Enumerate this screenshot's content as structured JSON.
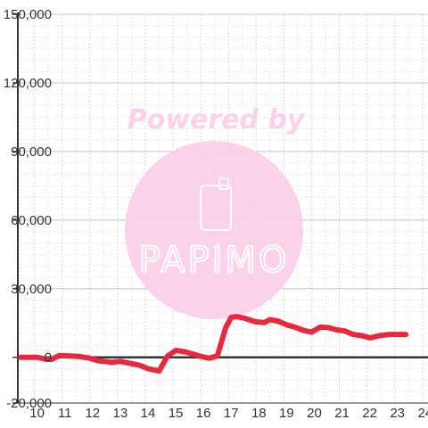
{
  "chart_data": {
    "type": "line",
    "title": "",
    "xlabel": "",
    "ylabel": "",
    "xlim": [
      9.4,
      24.2
    ],
    "ylim": [
      -20000,
      150000
    ],
    "x_ticks": [
      10,
      11,
      12,
      13,
      14,
      15,
      16,
      17,
      18,
      19,
      20,
      21,
      22,
      23,
      24
    ],
    "y_ticks": [
      -20000,
      0,
      30000,
      60000,
      90000,
      120000,
      150000
    ],
    "x_tick_labels": [
      "10",
      "11",
      "12",
      "13",
      "14",
      "15",
      "16",
      "17",
      "18",
      "19",
      "20",
      "21",
      "22",
      "23",
      "24"
    ],
    "y_tick_labels": [
      "-20,000",
      "0",
      "30,000",
      "60,000",
      "90,000",
      "120,000",
      "150,000"
    ],
    "grid": true,
    "legend": "none",
    "series": [
      {
        "color": "#e8283c",
        "points": [
          [
            9.5,
            0
          ],
          [
            10.1,
            0
          ],
          [
            10.4,
            -800
          ],
          [
            10.6,
            -1000
          ],
          [
            10.9,
            800
          ],
          [
            11.3,
            600
          ],
          [
            11.6,
            400
          ],
          [
            12.0,
            -400
          ],
          [
            12.3,
            -1500
          ],
          [
            12.5,
            -1800
          ],
          [
            12.8,
            -2200
          ],
          [
            13.1,
            -1800
          ],
          [
            13.3,
            -2300
          ],
          [
            13.8,
            -3500
          ],
          [
            14.1,
            -5000
          ],
          [
            14.5,
            -6000
          ],
          [
            14.8,
            600
          ],
          [
            15.1,
            3000
          ],
          [
            15.4,
            2500
          ],
          [
            15.7,
            1500
          ],
          [
            16.0,
            400
          ],
          [
            16.3,
            -400
          ],
          [
            16.6,
            600
          ],
          [
            16.9,
            13000
          ],
          [
            17.1,
            17500
          ],
          [
            17.3,
            17800
          ],
          [
            17.6,
            17000
          ],
          [
            18.0,
            15500
          ],
          [
            18.3,
            15200
          ],
          [
            18.5,
            16500
          ],
          [
            18.8,
            15800
          ],
          [
            19.1,
            14200
          ],
          [
            19.4,
            13200
          ],
          [
            19.7,
            11800
          ],
          [
            20.0,
            11000
          ],
          [
            20.3,
            13200
          ],
          [
            20.6,
            13000
          ],
          [
            20.9,
            12000
          ],
          [
            21.2,
            11500
          ],
          [
            21.5,
            10000
          ],
          [
            21.8,
            9500
          ],
          [
            22.1,
            8500
          ],
          [
            22.5,
            9600
          ],
          [
            22.8,
            10000
          ],
          [
            23.1,
            10000
          ],
          [
            23.4,
            10000
          ]
        ]
      }
    ]
  },
  "watermark": {
    "caption": "Powered by",
    "brand": "PAPIMO"
  },
  "colors": {
    "line": "#e8283c",
    "grid_major": "#c8c8c8",
    "grid_minor": "#d8d8d8",
    "axis": "#333333",
    "watermark": "#f9cde6"
  }
}
